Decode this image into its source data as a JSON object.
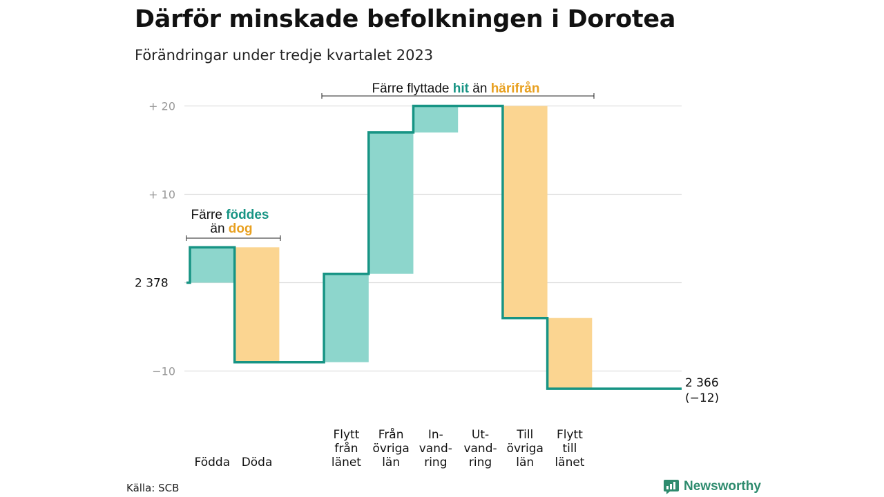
{
  "header": {
    "title": "Därför minskade befolkningen i Dorotea",
    "subtitle": "Förändringar under tredje kvartalet 2023"
  },
  "colors": {
    "inflow": "#8dd6cc",
    "outflow": "#fbd591",
    "line": "#179484",
    "accent_teal": "#179484",
    "accent_orange": "#e8a020",
    "grid": "#dddddd"
  },
  "annotations": {
    "births": {
      "pre": "Färre",
      "hl1": "föddes",
      "mid": "än",
      "hl2": "dog"
    },
    "migration": {
      "pre": "Färre flyttade",
      "hl1": "hit",
      "mid": "än",
      "hl2": "härifrån"
    }
  },
  "chart_data": {
    "type": "waterfall",
    "start": {
      "label": "2 378",
      "value": 2378
    },
    "end": {
      "label": "2 366",
      "change_label": "(−12)",
      "value": 2366
    },
    "y_ticks": [
      {
        "value": 20,
        "label": "+ 20"
      },
      {
        "value": 10,
        "label": "+ 10"
      },
      {
        "value": -10,
        "label": "−10"
      }
    ],
    "ylim": [
      -13,
      21
    ],
    "grid": true,
    "steps": [
      {
        "label": [
          "Födda"
        ],
        "change": 4,
        "kind": "in"
      },
      {
        "label": [
          "Döda"
        ],
        "change": -13,
        "kind": "out"
      },
      {
        "label": [],
        "change": 0,
        "kind": "gap"
      },
      {
        "label": [
          "Flytt",
          "från",
          "länet"
        ],
        "change": 10,
        "kind": "in"
      },
      {
        "label": [
          "Från",
          "övriga",
          "län"
        ],
        "change": 16,
        "kind": "in"
      },
      {
        "label": [
          "In-",
          "vand-",
          "ring"
        ],
        "change": 3,
        "kind": "in"
      },
      {
        "label": [
          "Ut-",
          "vand-",
          "ring"
        ],
        "change": 0,
        "kind": "out"
      },
      {
        "label": [
          "Till",
          "övriga",
          "län"
        ],
        "change": -24,
        "kind": "out"
      },
      {
        "label": [
          "Flytt",
          "till",
          "länet"
        ],
        "change": -8,
        "kind": "out"
      }
    ]
  },
  "footer": {
    "source": "Källa: SCB",
    "brand": "Newsworthy",
    "brand_icon": "bar-chart-logo-icon"
  }
}
